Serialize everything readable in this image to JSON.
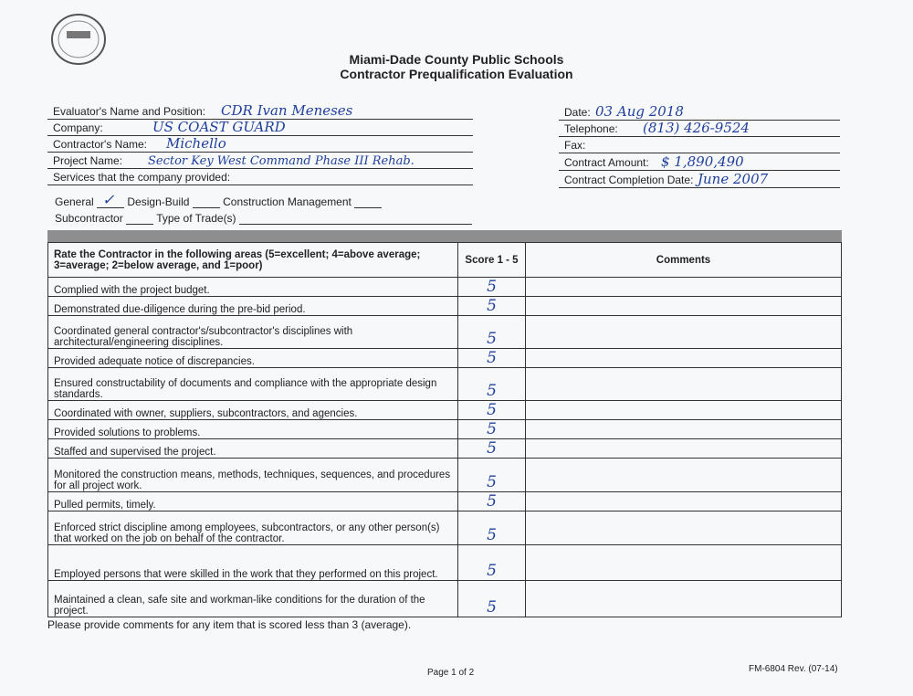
{
  "header": {
    "org": "Miami-Dade County Public Schools",
    "title": "Contractor Prequalification Evaluation"
  },
  "fields_left": [
    {
      "label": "Evaluator's Name and Position:",
      "value": "CDR Ivan Meneses"
    },
    {
      "label": "Company:",
      "value": "US COAST GUARD"
    },
    {
      "label": "Contractor's Name:",
      "value": "Michello"
    },
    {
      "label": "Project Name:",
      "value": "Sector Key West Command Phase III Rehab."
    },
    {
      "label": "Services that the company provided:",
      "value": ""
    }
  ],
  "fields_right": [
    {
      "label": "Date:",
      "value": "03 Aug 2018"
    },
    {
      "label": "Telephone:",
      "value": "(813) 426-9524"
    },
    {
      "label": "Fax:",
      "value": ""
    },
    {
      "label": "Contract Amount:",
      "value": "$ 1,890,490"
    },
    {
      "label": "Contract Completion Date:",
      "value": "June 2007"
    }
  ],
  "services": {
    "general": "General",
    "general_mark": "✓",
    "design_build": "Design-Build",
    "cm": "Construction Management",
    "sub": "Subcontractor",
    "trade": "Type of Trade(s)"
  },
  "table": {
    "header": "Rate the Contractor in the following areas (5=excellent; 4=above average; 3=average; 2=below average, and 1=poor)",
    "score_header": "Score 1 - 5",
    "comments_header": "Comments",
    "rows": [
      {
        "item": "Complied with the project budget.",
        "score": "5"
      },
      {
        "item": "Demonstrated due-diligence during the pre-bid period.",
        "score": "5"
      },
      {
        "item": "Coordinated general contractor's/subcontractor's disciplines with architectural/engineering disciplines.",
        "score": "5"
      },
      {
        "item": "Provided adequate notice of discrepancies.",
        "score": "5"
      },
      {
        "item": "Ensured constructability of documents and compliance with the appropriate design standards.",
        "score": "5"
      },
      {
        "item": "Coordinated with owner, suppliers, subcontractors, and agencies.",
        "score": "5"
      },
      {
        "item": "Provided solutions to problems.",
        "score": "5"
      },
      {
        "item": "Staffed and supervised the project.",
        "score": "5"
      },
      {
        "item": "Monitored the construction means, methods, techniques, sequences, and procedures for all project work.",
        "score": "5"
      },
      {
        "item": "Pulled permits, timely.",
        "score": "5"
      },
      {
        "item": "Enforced strict discipline among employees, subcontractors, or any other person(s) that worked on the job on behalf of the contractor.",
        "score": "5"
      },
      {
        "item": "Employed persons that were skilled in the work that they performed on this project.",
        "score": "5"
      },
      {
        "item": "Maintained a clean, safe site and workman-like conditions for the duration of the project.",
        "score": "5"
      }
    ]
  },
  "footnote": "Please provide comments for any item that is scored less than 3 (average).",
  "page": "Page 1 of 2",
  "form_id": "FM-6804 Rev. (07-14)"
}
